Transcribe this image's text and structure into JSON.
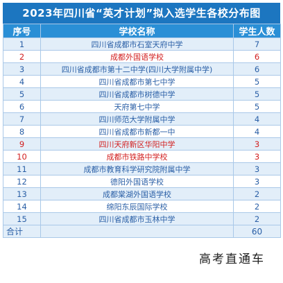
{
  "title": "2023年四川省“英才计划”拟入选学生各校分布图",
  "headers": {
    "seq": "序号",
    "name": "学校名称",
    "count": "学生人数"
  },
  "rows": [
    {
      "seq": "1",
      "name": "四川省成都市石室天府中学",
      "count": "7",
      "highlight": false
    },
    {
      "seq": "2",
      "name": "成都外国语学校",
      "count": "6",
      "highlight": true
    },
    {
      "seq": "3",
      "name": "四川省成都市第十二中学(四川大学附属中学)",
      "count": "6",
      "highlight": false
    },
    {
      "seq": "4",
      "name": "四川省成都市第七中学",
      "count": "5",
      "highlight": false
    },
    {
      "seq": "5",
      "name": "四川省成都市树德中学",
      "count": "5",
      "highlight": false
    },
    {
      "seq": "6",
      "name": "天府第七中学",
      "count": "5",
      "highlight": false
    },
    {
      "seq": "7",
      "name": "四川师范大学附属中学",
      "count": "4",
      "highlight": false
    },
    {
      "seq": "8",
      "name": "四川省成都市新都一中",
      "count": "4",
      "highlight": false
    },
    {
      "seq": "9",
      "name": "四川天府新区华阳中学",
      "count": "3",
      "highlight": true
    },
    {
      "seq": "10",
      "name": "成都市铁路中学校",
      "count": "3",
      "highlight": true
    },
    {
      "seq": "11",
      "name": "成都市教育科学研究院附属中学",
      "count": "3",
      "highlight": false
    },
    {
      "seq": "12",
      "name": "德阳外国语学校",
      "count": "3",
      "highlight": false
    },
    {
      "seq": "13",
      "name": "成都棠湖外国语学校",
      "count": "2",
      "highlight": false
    },
    {
      "seq": "14",
      "name": "绵阳东辰国际学校",
      "count": "2",
      "highlight": false
    },
    {
      "seq": "15",
      "name": "四川省成都市玉林中学",
      "count": "2",
      "highlight": false
    }
  ],
  "total": {
    "label": "合计",
    "value": "60"
  },
  "watermark": "高考直通车",
  "colors": {
    "title_bg": "#1c76c0",
    "header_bg": "#2a8fd6",
    "stripe": "#e2eef9",
    "text": "#2a5fa6",
    "highlight": "#d21e1e"
  }
}
